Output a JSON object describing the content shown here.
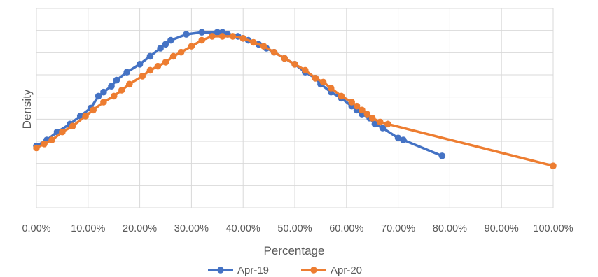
{
  "chart_data": {
    "type": "line",
    "title": "",
    "xlabel": "Percentage",
    "ylabel": "Density",
    "xlim": [
      0,
      100
    ],
    "x_ticks": [
      "0.00%",
      "10.00%",
      "20.00%",
      "30.00%",
      "40.00%",
      "50.00%",
      "60.00%",
      "70.00%",
      "80.00%",
      "90.00%",
      "100.00%"
    ],
    "y_ticks_shown": false,
    "grid": true,
    "legend": "bottom",
    "series": [
      {
        "name": "Apr-19",
        "color": "#4472c4",
        "marker": "circle",
        "points": [
          [
            0,
            0.31
          ],
          [
            2,
            0.34
          ],
          [
            4,
            0.38
          ],
          [
            6.5,
            0.42
          ],
          [
            8.5,
            0.46
          ],
          [
            10.5,
            0.5
          ],
          [
            12,
            0.56
          ],
          [
            13,
            0.58
          ],
          [
            14.5,
            0.61
          ],
          [
            15.5,
            0.64
          ],
          [
            17.5,
            0.68
          ],
          [
            20,
            0.72
          ],
          [
            22,
            0.76
          ],
          [
            24,
            0.8
          ],
          [
            25,
            0.82
          ],
          [
            26,
            0.84
          ],
          [
            29,
            0.87
          ],
          [
            32,
            0.88
          ],
          [
            35,
            0.88
          ],
          [
            36,
            0.88
          ],
          [
            37,
            0.87
          ],
          [
            39,
            0.86
          ],
          [
            40,
            0.85
          ],
          [
            41,
            0.84
          ],
          [
            43,
            0.82
          ],
          [
            44.5,
            0.8
          ],
          [
            46,
            0.78
          ],
          [
            48,
            0.75
          ],
          [
            50,
            0.72
          ],
          [
            52,
            0.68
          ],
          [
            54,
            0.65
          ],
          [
            55,
            0.62
          ],
          [
            57,
            0.58
          ],
          [
            59,
            0.55
          ],
          [
            61,
            0.51
          ],
          [
            62,
            0.49
          ],
          [
            63,
            0.47
          ],
          [
            64.5,
            0.45
          ],
          [
            65.5,
            0.42
          ],
          [
            67,
            0.4
          ],
          [
            70,
            0.35
          ],
          [
            71,
            0.34
          ],
          [
            78.5,
            0.26
          ]
        ]
      },
      {
        "name": "Apr-20",
        "color": "#ed7d31",
        "marker": "circle",
        "points": [
          [
            0,
            0.3
          ],
          [
            1.5,
            0.32
          ],
          [
            3,
            0.34
          ],
          [
            5,
            0.38
          ],
          [
            7,
            0.41
          ],
          [
            9.5,
            0.46
          ],
          [
            11,
            0.49
          ],
          [
            13,
            0.53
          ],
          [
            15,
            0.56
          ],
          [
            16.5,
            0.59
          ],
          [
            18,
            0.62
          ],
          [
            20.5,
            0.66
          ],
          [
            22,
            0.69
          ],
          [
            23.5,
            0.71
          ],
          [
            25,
            0.73
          ],
          [
            26.5,
            0.76
          ],
          [
            28,
            0.78
          ],
          [
            30,
            0.81
          ],
          [
            32,
            0.84
          ],
          [
            34,
            0.86
          ],
          [
            36,
            0.86
          ],
          [
            38,
            0.86
          ],
          [
            40,
            0.85
          ],
          [
            42,
            0.83
          ],
          [
            44,
            0.81
          ],
          [
            46,
            0.78
          ],
          [
            48,
            0.75
          ],
          [
            50,
            0.72
          ],
          [
            52,
            0.69
          ],
          [
            54,
            0.65
          ],
          [
            55.5,
            0.63
          ],
          [
            57,
            0.6
          ],
          [
            59,
            0.56
          ],
          [
            61,
            0.53
          ],
          [
            62,
            0.51
          ],
          [
            63,
            0.49
          ],
          [
            64,
            0.47
          ],
          [
            65,
            0.45
          ],
          [
            66.5,
            0.43
          ],
          [
            68,
            0.42
          ],
          [
            100,
            0.21
          ]
        ]
      }
    ]
  }
}
